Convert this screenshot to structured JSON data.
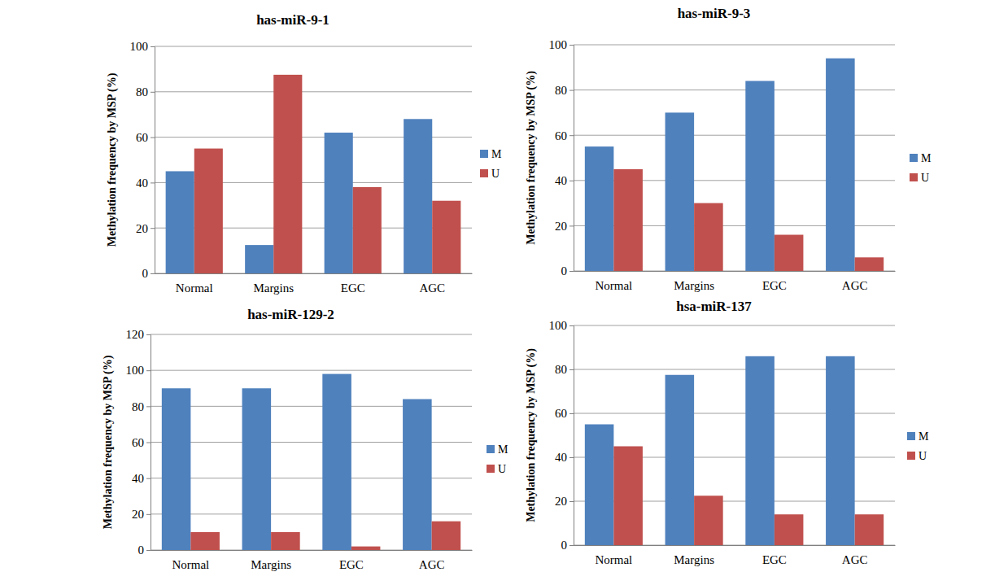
{
  "chart_data": [
    {
      "type": "bar",
      "title": "has-miR-9-1",
      "y_label": "Methylation frequency by MSP (%)",
      "categories": [
        "Normal",
        "Margins",
        "EGC",
        "AGC"
      ],
      "series": [
        {
          "name": "M",
          "color": "#4f81bd",
          "values": [
            45,
            12.5,
            62,
            68
          ]
        },
        {
          "name": "U",
          "color": "#c0504d",
          "values": [
            55,
            87.5,
            38,
            32
          ]
        }
      ],
      "ylim": [
        0,
        100
      ],
      "yticks": [
        0,
        20,
        40,
        60,
        80,
        100
      ],
      "grid": true,
      "legend": "right"
    },
    {
      "type": "bar",
      "title": "has-miR-9-3",
      "y_label": "Methylation frequency by MSP (%)",
      "categories": [
        "Normal",
        "Margins",
        "EGC",
        "AGC"
      ],
      "series": [
        {
          "name": "M",
          "color": "#4f81bd",
          "values": [
            55,
            70,
            84,
            94
          ]
        },
        {
          "name": "U",
          "color": "#c0504d",
          "values": [
            45,
            30,
            16,
            6
          ]
        }
      ],
      "ylim": [
        0,
        100
      ],
      "yticks": [
        0,
        20,
        40,
        60,
        80,
        100
      ],
      "grid": true,
      "legend": "right"
    },
    {
      "type": "bar",
      "title": "has-miR-129-2",
      "y_label": "Methylation frequency by MSP (%)",
      "categories": [
        "Normal",
        "Margins",
        "EGC",
        "AGC"
      ],
      "series": [
        {
          "name": "M",
          "color": "#4f81bd",
          "values": [
            90,
            90,
            98,
            84
          ]
        },
        {
          "name": "U",
          "color": "#c0504d",
          "values": [
            10,
            10,
            2,
            16
          ]
        }
      ],
      "ylim": [
        0,
        120
      ],
      "yticks": [
        0,
        20,
        40,
        60,
        80,
        100,
        120
      ],
      "grid": true,
      "legend": "right"
    },
    {
      "type": "bar",
      "title": "hsa-miR-137",
      "y_label": "Methylation frequency by MSP (%)",
      "categories": [
        "Normal",
        "Margins",
        "EGC",
        "AGC"
      ],
      "series": [
        {
          "name": "M",
          "color": "#4f81bd",
          "values": [
            55,
            77.5,
            86,
            86
          ]
        },
        {
          "name": "U",
          "color": "#c0504d",
          "values": [
            45,
            22.5,
            14,
            14
          ]
        }
      ],
      "ylim": [
        0,
        100
      ],
      "yticks": [
        0,
        20,
        40,
        60,
        80,
        100
      ],
      "grid": true,
      "legend": "right"
    }
  ]
}
